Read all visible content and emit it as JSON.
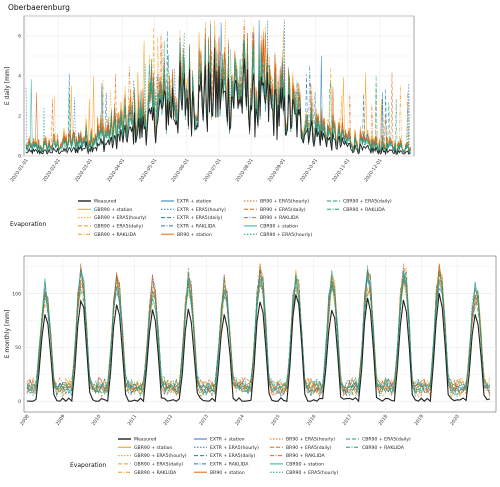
{
  "colors": {
    "measured": "#222222",
    "gbr90": "#f39c12",
    "extr": "#1f78b4",
    "br90": "#e8620f",
    "cbr90": "#1a9e77",
    "station_cbr90": "#21b2a8",
    "grid": "#ebebeb"
  },
  "chart_data": [
    {
      "type": "line",
      "title": "Oberbaerenburg",
      "ylabel": "E daily [mm]",
      "xlabel": "",
      "ylim": [
        0,
        7
      ],
      "yticks": [
        "0",
        "2",
        "4",
        "6"
      ],
      "x": [
        "2020-01-01",
        "2020-02-01",
        "2020-03-01",
        "2020-04-01",
        "2020-05-01",
        "2020-06-01",
        "2020-07-01",
        "2020-08-01",
        "2020-09-01",
        "2020-10-01",
        "2020-11-01",
        "2020-12-01"
      ],
      "series": [
        {
          "name": "Measured",
          "values": [
            0.2,
            0.3,
            0.6,
            1.3,
            2.4,
            2.9,
            3.0,
            2.5,
            1.6,
            0.7,
            0.3,
            0.2
          ]
        },
        {
          "name": "GBR90 + station",
          "values": [
            0.5,
            0.8,
            1.3,
            2.0,
            3.0,
            3.5,
            3.6,
            3.1,
            2.1,
            1.2,
            0.7,
            0.5
          ]
        },
        {
          "name": "EXTR + station",
          "values": [
            0.4,
            0.7,
            1.1,
            1.8,
            2.8,
            3.3,
            3.4,
            2.9,
            1.9,
            1.0,
            0.6,
            0.4
          ]
        },
        {
          "name": "BR90 + station",
          "values": [
            0.5,
            0.8,
            1.2,
            1.9,
            2.9,
            3.4,
            3.5,
            3.0,
            2.0,
            1.1,
            0.6,
            0.5
          ]
        },
        {
          "name": "CBR90 + station",
          "values": [
            0.4,
            0.6,
            1.0,
            1.7,
            2.7,
            3.2,
            3.3,
            2.8,
            1.8,
            0.9,
            0.5,
            0.4
          ]
        }
      ],
      "legend_title": "Evaporation"
    },
    {
      "type": "line",
      "title": "",
      "ylabel": "E monthly [mm]",
      "xlabel": "",
      "ylim": [
        -10,
        135
      ],
      "yticks": [
        "0",
        "50",
        "100"
      ],
      "x": [
        "2008",
        "2009",
        "2010",
        "2011",
        "2012",
        "2013",
        "2014",
        "2015",
        "2016",
        "2017",
        "2018",
        "2019",
        "2020"
      ],
      "annual_peak_measured": [
        80,
        95,
        90,
        85,
        85,
        80,
        95,
        100,
        85,
        95,
        95,
        100,
        80
      ],
      "annual_peak_models": [
        105,
        120,
        115,
        110,
        115,
        110,
        125,
        120,
        115,
        120,
        125,
        125,
        105
      ],
      "series": [
        {
          "name": "Measured"
        },
        {
          "name": "GBR90 + station"
        },
        {
          "name": "EXTR + station"
        },
        {
          "name": "BR90 + station"
        },
        {
          "name": "CBR90 + station"
        }
      ],
      "legend_title": "Evaporation"
    }
  ],
  "legend_items": [
    {
      "label": "Measured",
      "color": "#222222",
      "dash": "",
      "w": 1.4
    },
    {
      "label": "GBR90 + station",
      "color": "#f39c12",
      "dash": "",
      "w": 1
    },
    {
      "label": "GBR90 + ERA5(hourly)",
      "color": "#f39c12",
      "dash": "1.5,1.5",
      "w": 1
    },
    {
      "label": "GBR90 + ERA5(daily)",
      "color": "#f39c12",
      "dash": "4,2",
      "w": 1
    },
    {
      "label": "GBR90 + RAKLIDA",
      "color": "#f39c12",
      "dash": "4,1.5,1,1.5",
      "w": 1
    },
    {
      "label": "EXTR + station",
      "color": "#1f78b4",
      "dash": "",
      "w": 1
    },
    {
      "label": "EXTR + ERA5(hourly)",
      "color": "#1f78b4",
      "dash": "1.5,1.5",
      "w": 1
    },
    {
      "label": "EXTR + ERA5(daily)",
      "color": "#1f78b4",
      "dash": "4,2",
      "w": 1
    },
    {
      "label": "EXTR + RAKLIDA",
      "color": "#1f78b4",
      "dash": "4,1.5,1,1.5",
      "w": 1
    },
    {
      "label": "BR90 + station",
      "color": "#e8620f",
      "dash": "",
      "w": 1
    },
    {
      "label": "BR90 + ERA5(hourly)",
      "color": "#e8620f",
      "dash": "1.5,1.5",
      "w": 1
    },
    {
      "label": "BR90 + ERA5(daily)",
      "color": "#e8620f",
      "dash": "4,2",
      "w": 1
    },
    {
      "label": "BR90 + RAKLIDA",
      "color": "#e8620f",
      "dash": "4,1.5,1,1.5",
      "w": 1
    },
    {
      "label": "CBR90 + station",
      "color": "#21b2a8",
      "dash": "",
      "w": 1
    },
    {
      "label": "CBR90 + ERA5(hourly)",
      "color": "#1a9e77",
      "dash": "1.5,1.5",
      "w": 1
    },
    {
      "label": "CBR90 + ERA5(daily)",
      "color": "#1a9e77",
      "dash": "4,2",
      "w": 1
    },
    {
      "label": "CBR90 + RAKLIDA",
      "color": "#1a9e77",
      "dash": "4,1.5,1,1.5",
      "w": 1
    }
  ]
}
